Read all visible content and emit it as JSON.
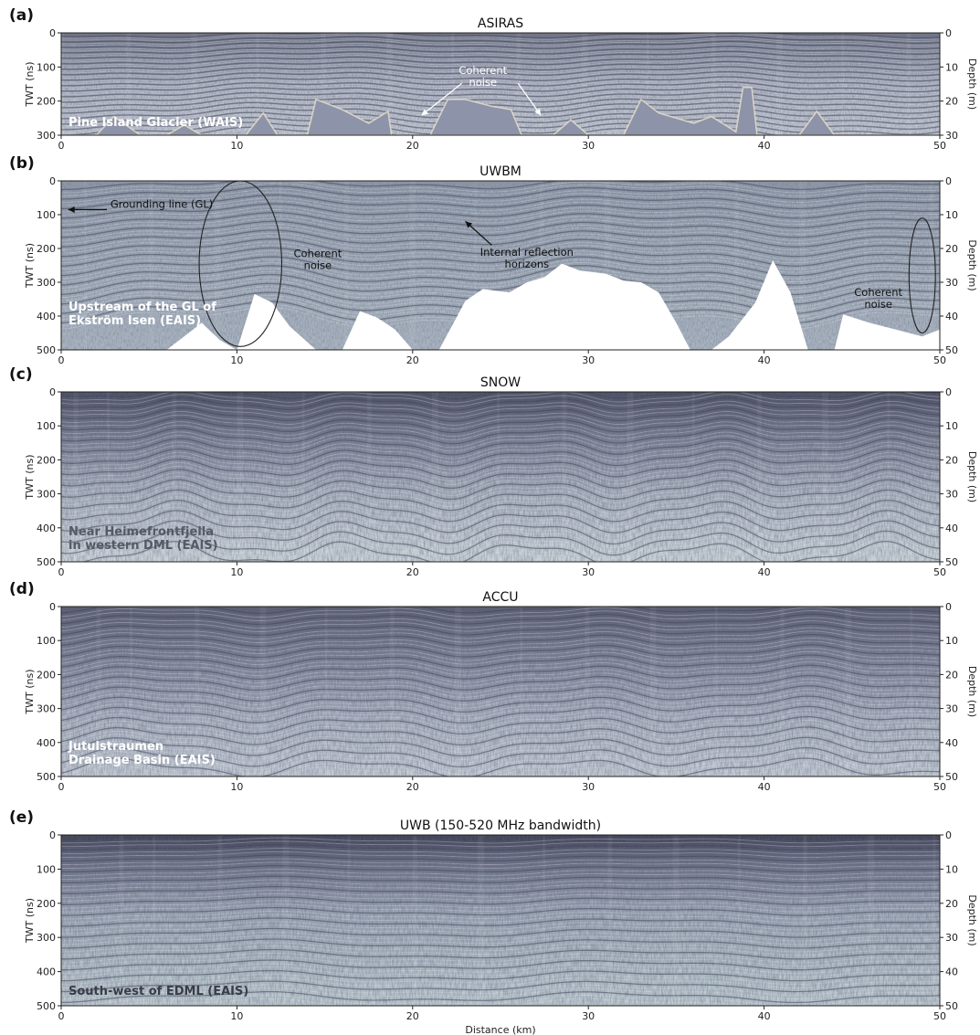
{
  "chart_data": [
    {
      "type": "heatmap",
      "panel": "(a)",
      "title": "ASIRAS",
      "xlabel": "",
      "ylabel": "TWT (ns)",
      "ylabel_right": "Depth (m)",
      "xlim": [
        0,
        50
      ],
      "ylim": [
        300,
        0
      ],
      "ylim_right": [
        30,
        0
      ],
      "x_ticks": [
        "0",
        "10",
        "20",
        "30",
        "40",
        "50"
      ],
      "y_ticks": [
        "0",
        "100",
        "200",
        "300"
      ],
      "y_ticks_right": [
        "0",
        "10",
        "20",
        "30"
      ],
      "site": [
        "Pine Island Glacier (WAIS)"
      ],
      "annotations": [
        {
          "lines": [
            "Coherent",
            "noise"
          ],
          "x": 24.0,
          "y": 120,
          "color": "#ffffff"
        }
      ],
      "arrows": [
        {
          "from": [
            22.8,
            148
          ],
          "to": [
            20.5,
            242
          ],
          "color": "#ffffff"
        },
        {
          "from": [
            26.0,
            148
          ],
          "to": [
            27.3,
            242
          ],
          "color": "#ffffff"
        }
      ],
      "background": "#9a9fb2",
      "blank_color": "#8d93a8",
      "blank_profile": [
        [
          0,
          300
        ],
        [
          2,
          300
        ],
        [
          3,
          245
        ],
        [
          4.5,
          300
        ],
        [
          6,
          300
        ],
        [
          7,
          270
        ],
        [
          8,
          300
        ],
        [
          10.5,
          300
        ],
        [
          11.5,
          235
        ],
        [
          12.3,
          300
        ],
        [
          14,
          300
        ],
        [
          14.5,
          195
        ],
        [
          16,
          225
        ],
        [
          17.5,
          265
        ],
        [
          18.6,
          230
        ],
        [
          18.8,
          300
        ],
        [
          21,
          300
        ],
        [
          22,
          195
        ],
        [
          23,
          195
        ],
        [
          24.5,
          215
        ],
        [
          25.6,
          225
        ],
        [
          26.2,
          300
        ],
        [
          28,
          300
        ],
        [
          29,
          255
        ],
        [
          30,
          300
        ],
        [
          32,
          300
        ],
        [
          33,
          195
        ],
        [
          34,
          235
        ],
        [
          36,
          265
        ],
        [
          37,
          245
        ],
        [
          38.4,
          290
        ],
        [
          38.8,
          160
        ],
        [
          39.3,
          160
        ],
        [
          39.6,
          300
        ],
        [
          42,
          300
        ],
        [
          43,
          230
        ],
        [
          44,
          300
        ],
        [
          50,
          300
        ]
      ],
      "layers": {
        "count": 60,
        "base": 5,
        "spacing": 5.1,
        "amp": 15,
        "freq": 0.28,
        "phase": 0.4,
        "amp2": 6,
        "freq2": 0.9
      }
    },
    {
      "type": "heatmap",
      "panel": "(b)",
      "title": "UWBM",
      "xlabel": "",
      "ylabel": "TWT (ns)",
      "ylabel_right": "Depth (m)",
      "xlim": [
        0,
        50
      ],
      "ylim": [
        500,
        0
      ],
      "ylim_right": [
        50,
        0
      ],
      "x_ticks": [
        "0",
        "10",
        "20",
        "30",
        "40",
        "50"
      ],
      "y_ticks": [
        "0",
        "100",
        "200",
        "300",
        "400",
        "500"
      ],
      "y_ticks_right": [
        "0",
        "10",
        "20",
        "30",
        "40",
        "50"
      ],
      "site": [
        "Upstream of the GL of",
        "Ekström Isen (EAIS)"
      ],
      "annotations": [
        {
          "lines": [
            "Grounding line (GL)"
          ],
          "x": 2.8,
          "y": 80,
          "anchor": "start",
          "color": "#111111"
        },
        {
          "lines": [
            "Coherent",
            "noise"
          ],
          "x": 14.6,
          "y": 225,
          "color": "#111111"
        },
        {
          "lines": [
            "Internal reflection",
            "horizons"
          ],
          "x": 26.5,
          "y": 222,
          "color": "#111111"
        },
        {
          "lines": [
            "Coherent",
            "noise"
          ],
          "x": 46.5,
          "y": 340,
          "color": "#111111"
        }
      ],
      "arrows": [
        {
          "from": [
            2.6,
            85
          ],
          "to": [
            0.4,
            85
          ],
          "color": "#111111"
        },
        {
          "from": [
            24.5,
            190
          ],
          "to": [
            23.0,
            120
          ],
          "color": "#111111"
        }
      ],
      "ellipses": [
        {
          "cx": 10.2,
          "cy": 245,
          "rx": 2.35,
          "ry": 245,
          "color": "#222222"
        },
        {
          "cx": 49.0,
          "cy": 280,
          "rx": 0.75,
          "ry": 170,
          "color": "#222222"
        }
      ],
      "background": "#a2acba",
      "blank_color": "#ffffff",
      "blank_profile": [
        [
          0,
          500
        ],
        [
          6,
          500
        ],
        [
          7,
          460
        ],
        [
          8,
          420
        ],
        [
          9,
          470
        ],
        [
          10,
          500
        ],
        [
          11,
          335
        ],
        [
          12,
          360
        ],
        [
          13,
          430
        ],
        [
          14.5,
          500
        ],
        [
          16,
          500
        ],
        [
          17,
          385
        ],
        [
          18,
          405
        ],
        [
          19,
          440
        ],
        [
          20,
          500
        ],
        [
          21.5,
          500
        ],
        [
          23,
          355
        ],
        [
          24,
          320
        ],
        [
          25.5,
          330
        ],
        [
          26.5,
          300
        ],
        [
          27.5,
          285
        ],
        [
          28.5,
          245
        ],
        [
          29.5,
          265
        ],
        [
          31,
          275
        ],
        [
          32,
          295
        ],
        [
          33,
          300
        ],
        [
          34,
          330
        ],
        [
          35,
          420
        ],
        [
          35.8,
          500
        ],
        [
          37,
          500
        ],
        [
          38,
          460
        ],
        [
          39.5,
          360
        ],
        [
          40.5,
          235
        ],
        [
          41.5,
          330
        ],
        [
          42.5,
          500
        ],
        [
          44,
          500
        ],
        [
          44.5,
          395
        ],
        [
          46,
          420
        ],
        [
          47.5,
          440
        ],
        [
          49,
          460
        ],
        [
          50,
          440
        ]
      ],
      "layers": {
        "count": 45,
        "base": 8,
        "spacing": 9,
        "amp": 25,
        "freq": 0.3,
        "phase": 1.2,
        "amp2": 15,
        "freq2": 0.75
      }
    },
    {
      "type": "heatmap",
      "panel": "(c)",
      "title": "SNOW",
      "xlabel": "",
      "ylabel": "TWT (ns)",
      "ylabel_right": "Depth (m)",
      "xlim": [
        0,
        50
      ],
      "ylim": [
        500,
        0
      ],
      "ylim_right": [
        50,
        0
      ],
      "x_ticks": [
        "0",
        "10",
        "20",
        "30",
        "40",
        "50"
      ],
      "y_ticks": [
        "0",
        "100",
        "200",
        "300",
        "400",
        "500"
      ],
      "y_ticks_right": [
        "0",
        "10",
        "20",
        "30",
        "40",
        "50"
      ],
      "site": [
        "Near Heimefrontfjella",
        "in western DML (EAIS)"
      ],
      "annotations": [],
      "arrows": [],
      "background": "#8c8fa3",
      "layers": {
        "count": 48,
        "base": 4,
        "spacing": 10.5,
        "amp": 28,
        "freq": 0.62,
        "phase": 0.2,
        "amp2": 10,
        "freq2": 1.4
      }
    },
    {
      "type": "heatmap",
      "panel": "(d)",
      "title": "ACCU",
      "xlabel": "",
      "ylabel": "TWT (ns)",
      "ylabel_right": "Depth (m)",
      "xlim": [
        0,
        50
      ],
      "ylim": [
        500,
        0
      ],
      "ylim_right": [
        50,
        0
      ],
      "x_ticks": [
        "0",
        "10",
        "20",
        "30",
        "40",
        "50"
      ],
      "y_ticks": [
        "0",
        "100",
        "200",
        "300",
        "400",
        "500"
      ],
      "y_ticks_right": [
        "0",
        "10",
        "20",
        "30",
        "40",
        "50"
      ],
      "site": [
        "Jutulstraumen",
        "Drainage Basin (EAIS)"
      ],
      "annotations": [],
      "arrows": [],
      "background": "#8e91a4",
      "layers": {
        "count": 48,
        "base": 6,
        "spacing": 10.4,
        "amp": 22,
        "freq": 0.5,
        "phase": 2.1,
        "amp2": 9,
        "freq2": 1.1
      }
    },
    {
      "type": "heatmap",
      "panel": "(e)",
      "title": "UWB (150-520 MHz bandwidth)",
      "xlabel": "Distance (km)",
      "ylabel": "TWT (ns)",
      "ylabel_right": "Depth (m)",
      "xlim": [
        0,
        50
      ],
      "ylim": [
        500,
        0
      ],
      "ylim_right": [
        50,
        0
      ],
      "x_ticks": [
        "0",
        "10",
        "20",
        "30",
        "40",
        "50"
      ],
      "y_ticks": [
        "0",
        "100",
        "200",
        "300",
        "400",
        "500"
      ],
      "y_ticks_right": [
        "0",
        "10",
        "20",
        "30",
        "40",
        "50"
      ],
      "site": [
        "South-west of EDML (EAIS)"
      ],
      "annotations": [],
      "arrows": [],
      "background": "#858aa0",
      "layers": {
        "count": 48,
        "base": 6,
        "spacing": 10.4,
        "amp": 12,
        "freq": 0.3,
        "phase": 0.9,
        "amp2": 5,
        "freq2": 0.75
      }
    }
  ]
}
